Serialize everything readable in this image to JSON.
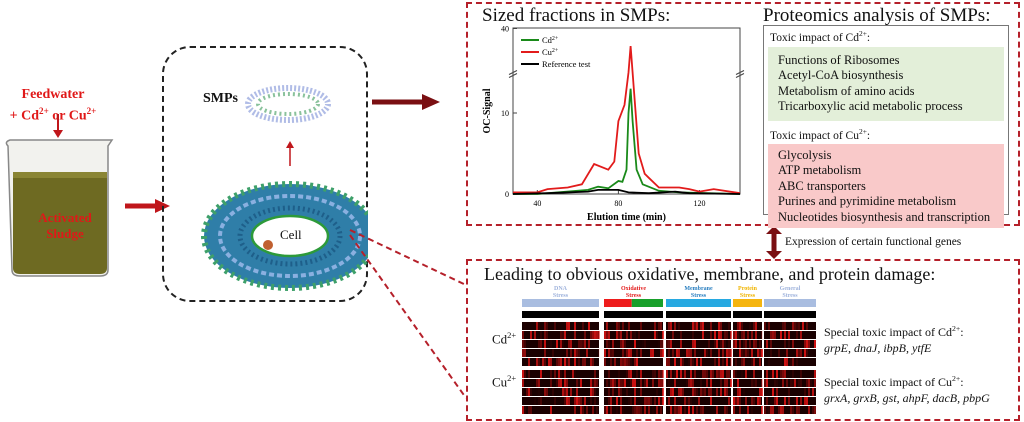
{
  "left": {
    "feed_line1": "Feedwater",
    "feed_line2_prefix": "+ Cd",
    "feed_line2_sup1": "2+",
    "feed_line2_mid": " or Cu",
    "feed_line2_sup2": "2+",
    "sludge_line1": "Activated",
    "sludge_line2": "Sludge"
  },
  "middle": {
    "smps_label": "SMPs",
    "cell_label": "Cell"
  },
  "chart_panel": {
    "title": "Sized fractions  in SMPs:"
  },
  "chart_data": {
    "type": "line",
    "xlabel": "Elution time (min)",
    "ylabel": "OC-Signal",
    "xlim": [
      28,
      140
    ],
    "ylim": [
      0,
      40
    ],
    "y_axis_break": 15,
    "xticks": [
      "40",
      "80",
      "120"
    ],
    "yticks": [
      "0",
      "10",
      "40"
    ],
    "legend_position": "top-left",
    "series": [
      {
        "name": "Cd",
        "name_sup": "2+",
        "color": "#1a8a1a",
        "x": [
          28,
          40,
          50,
          65,
          70,
          75,
          80,
          82,
          84,
          85,
          86,
          87,
          89,
          92,
          100,
          110,
          140
        ],
        "y": [
          0,
          0,
          0.2,
          0.5,
          0.9,
          0.7,
          1.6,
          1.5,
          3,
          10,
          13,
          9,
          3,
          1.2,
          0.4,
          0.2,
          0
        ]
      },
      {
        "name": "Cu",
        "name_sup": "2+",
        "color": "#e21b1b",
        "x": [
          28,
          40,
          45,
          55,
          62,
          68,
          75,
          78,
          80,
          83,
          85,
          86,
          87,
          90,
          93,
          95,
          100,
          110,
          115,
          120,
          127,
          140
        ],
        "y": [
          0.2,
          0.2,
          0.6,
          0.8,
          1.2,
          3.7,
          3.0,
          4,
          9,
          11,
          15,
          30,
          15,
          5,
          2.5,
          2,
          0.8,
          0.8,
          0.6,
          0.3,
          0.6,
          0.1
        ]
      },
      {
        "name": "Reference test",
        "color": "#000000",
        "x": [
          28,
          45,
          65,
          70,
          80,
          85,
          95,
          108,
          115,
          140
        ],
        "y": [
          0,
          0.1,
          0.3,
          0.5,
          0.5,
          0.2,
          0.1,
          0.3,
          0.1,
          0
        ]
      }
    ]
  },
  "proteomics": {
    "title": "Proteomics analysis of SMPs:",
    "cd_heading_prefix": "Toxic impact of Cd",
    "cd_heading_sup": "2+",
    "cd_items": [
      "Functions of Ribosomes",
      "Acetyl-CoA biosynthesis",
      "Metabolism of amino acids",
      "Tricarboxylic acid metabolic process"
    ],
    "cu_heading_prefix": "Toxic impact of Cu",
    "cu_heading_sup": "2+",
    "cu_items": [
      "Glycolysis",
      "ATP metabolism",
      "ABC transporters",
      "Purines and pyrimidine metabolism",
      "Nucleotides biosynthesis and transcription"
    ],
    "cd_bg": "#e3efd9",
    "cu_bg": "#f9c9c9"
  },
  "link_label": "Expression of certain functional genes",
  "damage": {
    "title": "Leading to  obvious oxidative, membrane, and protein damage:",
    "groups": [
      {
        "line1": "DNA",
        "line2": "Stress",
        "color": "#a9bde0",
        "text_color": "#9fb3dc"
      },
      {
        "line1": "Oxidative",
        "line2": "Stress",
        "color": "#ee1c1c",
        "color2": "#18a02a",
        "text_color": "#e31c1c"
      },
      {
        "line1": "Membrane",
        "line2": "Stress",
        "color": "#27a9e1",
        "text_color": "#2a7fc0"
      },
      {
        "line1": "Protein",
        "line2": "Stress",
        "color": "#f5b50f",
        "text_color": "#f0b400"
      },
      {
        "line1": "General",
        "line2": "Stress",
        "color": "#a9bde0",
        "text_color": "#9fb3dc"
      }
    ],
    "row_cd": {
      "prefix": "Cd",
      "sup": "2+"
    },
    "row_cu": {
      "prefix": "Cu",
      "sup": "2+"
    },
    "cd_special_prefix": "Special toxic impact of Cd",
    "cd_special_sup": "2+",
    "cd_special_genes": "grpE, dnaJ, ibpB, ytfE",
    "cu_special_prefix": "Special toxic impact of Cu",
    "cu_special_sup": "2+",
    "cu_special_genes": "grxA, grxB, gst, ahpF, dacB, pbpG"
  }
}
